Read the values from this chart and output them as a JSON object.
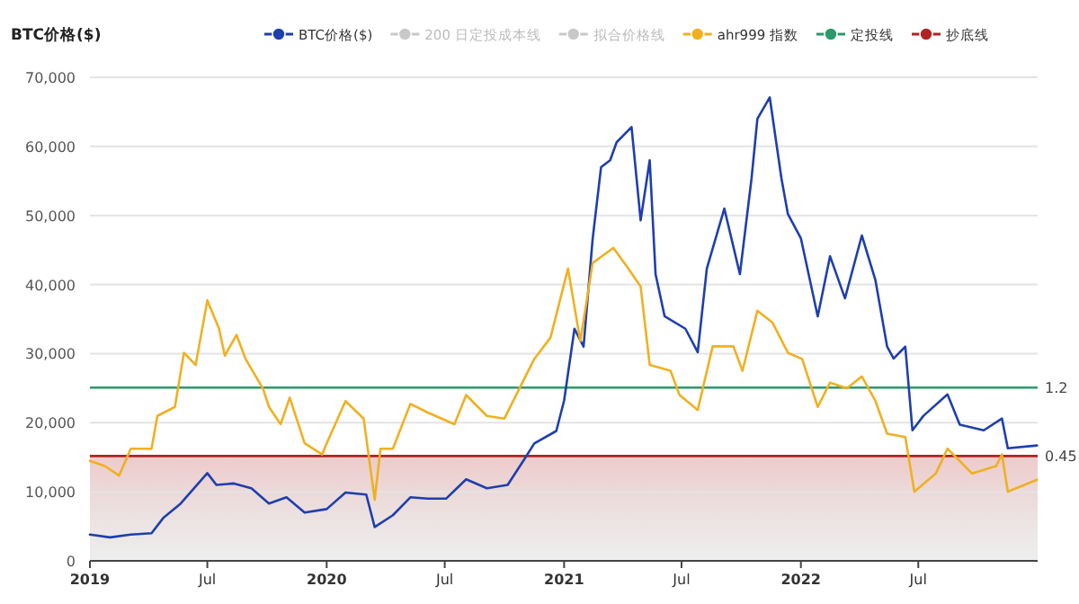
{
  "chart_data": {
    "type": "line",
    "ylabel": "BTC价格($)",
    "legend": "top",
    "grid": "y",
    "marker": "none",
    "xlim": [
      "2019-01-01",
      "2023-01-01"
    ],
    "xticks": [
      {
        "value": "2019-01-01",
        "label": "2019"
      },
      {
        "value": "2019-07-01",
        "label": "Jul"
      },
      {
        "value": "2020-01-01",
        "label": "2020"
      },
      {
        "value": "2020-07-01",
        "label": "Jul"
      },
      {
        "value": "2021-01-01",
        "label": "2021"
      },
      {
        "value": "2021-07-01",
        "label": "Jul"
      },
      {
        "value": "2022-01-01",
        "label": "2022"
      },
      {
        "value": "2022-07-01",
        "label": "Jul"
      }
    ],
    "ylim": [
      0,
      70000
    ],
    "yticks": [
      {
        "value": 0,
        "label": "0"
      },
      {
        "value": 10000,
        "label": "10,000"
      },
      {
        "value": 20000,
        "label": "20,000"
      },
      {
        "value": 30000,
        "label": "30,000"
      },
      {
        "value": 40000,
        "label": "40,000"
      },
      {
        "value": 50000,
        "label": "50,000"
      },
      {
        "value": 60000,
        "label": "60,000"
      },
      {
        "value": 70000,
        "label": "70,000"
      }
    ],
    "log": "y2",
    "y2lim": [
      0.1,
      103
    ],
    "y2ticks": [
      0.45,
      1.2
    ],
    "series": [
      {
        "name": "BTC价格($)",
        "color": "#1e3fae",
        "x": [
          "2019-01-01",
          "2019-02-01",
          "2019-03-05",
          "2019-04-06",
          "2019-04-24",
          "2019-05-21",
          "2019-07-01",
          "2019-07-15",
          "2019-08-11",
          "2019-09-07",
          "2019-10-04",
          "2019-10-31",
          "2019-11-28",
          "2020-01-01",
          "2020-01-30",
          "2020-03-02",
          "2020-03-15",
          "2020-04-12",
          "2020-05-09",
          "2020-06-05",
          "2020-07-03",
          "2020-08-03",
          "2020-09-04",
          "2020-10-06",
          "2020-11-02",
          "2020-11-16",
          "2020-12-20",
          "2021-01-01",
          "2021-01-17",
          "2021-01-31",
          "2021-02-14",
          "2021-02-27",
          "2021-03-13",
          "2021-03-23",
          "2021-04-15",
          "2021-04-29",
          "2021-05-13",
          "2021-05-22",
          "2021-06-05",
          "2021-07-07",
          "2021-07-26",
          "2021-08-09",
          "2021-09-05",
          "2021-09-29",
          "2021-10-17",
          "2021-10-26",
          "2021-11-14",
          "2021-12-02",
          "2021-12-12",
          "2022-01-01",
          "2022-01-27",
          "2022-02-15",
          "2022-03-10",
          "2022-04-05",
          "2022-04-26",
          "2022-05-14",
          "2022-05-24",
          "2022-06-11",
          "2022-06-22",
          "2022-07-09",
          "2022-08-15",
          "2022-09-03",
          "2022-10-10",
          "2022-11-07",
          "2022-11-16",
          "2022-12-31"
        ],
        "values": [
          3800,
          3400,
          3800,
          4000,
          6200,
          8300,
          12700,
          11000,
          11200,
          10500,
          8300,
          9200,
          7000,
          7500,
          9900,
          9600,
          4900,
          6600,
          9200,
          9000,
          9000,
          11800,
          10500,
          11000,
          14900,
          17000,
          18800,
          23200,
          33600,
          31000,
          46600,
          57000,
          58000,
          60600,
          62800,
          49300,
          58000,
          41500,
          35400,
          33600,
          30200,
          42300,
          51000,
          41500,
          55400,
          64000,
          67100,
          55400,
          50200,
          46700,
          35400,
          44100,
          38000,
          47100,
          40600,
          31000,
          29300,
          31000,
          18900,
          21000,
          24100,
          19700,
          18900,
          20600,
          16300,
          16700
        ]
      },
      {
        "name": "200 日定投成本线",
        "color": "#c8c8c8"
      },
      {
        "name": "拟合价格线",
        "color": "#c8c8c8"
      },
      {
        "name": "ahr999 指数",
        "color": "#f0b020",
        "axis": "y2",
        "x": [
          "2019-01-01",
          "2019-01-24",
          "2019-02-15",
          "2019-03-05",
          "2019-04-06",
          "2019-04-15",
          "2019-05-12",
          "2019-05-26",
          "2019-06-13",
          "2019-07-01",
          "2019-07-19",
          "2019-07-28",
          "2019-08-15",
          "2019-08-29",
          "2019-09-25",
          "2019-10-04",
          "2019-10-22",
          "2019-11-05",
          "2019-11-28",
          "2019-12-25",
          "2020-01-01",
          "2020-01-30",
          "2020-02-27",
          "2020-03-15",
          "2020-03-24",
          "2020-04-12",
          "2020-05-09",
          "2020-06-05",
          "2020-07-16",
          "2020-08-03",
          "2020-09-04",
          "2020-10-01",
          "2020-11-02",
          "2020-11-16",
          "2020-12-11",
          "2021-01-07",
          "2021-01-26",
          "2021-02-14",
          "2021-03-18",
          "2021-04-10",
          "2021-04-29",
          "2021-05-13",
          "2021-06-14",
          "2021-06-28",
          "2021-07-26",
          "2021-08-18",
          "2021-09-19",
          "2021-10-03",
          "2021-10-26",
          "2021-11-18",
          "2021-12-12",
          "2022-01-03",
          "2022-01-27",
          "2022-02-15",
          "2022-03-13",
          "2022-04-05",
          "2022-04-26",
          "2022-05-14",
          "2022-06-11",
          "2022-06-25",
          "2022-07-28",
          "2022-08-15",
          "2022-09-22",
          "2022-10-29",
          "2022-11-07",
          "2022-11-16",
          "2022-12-31"
        ],
        "values": [
          0.42,
          0.39,
          0.34,
          0.5,
          0.5,
          0.8,
          0.91,
          1.98,
          1.66,
          4.2,
          2.8,
          1.9,
          2.56,
          1.81,
          1.18,
          0.91,
          0.71,
          1.04,
          0.54,
          0.46,
          0.54,
          0.99,
          0.77,
          0.24,
          0.5,
          0.5,
          0.95,
          0.84,
          0.71,
          1.08,
          0.8,
          0.77,
          1.4,
          1.81,
          2.46,
          6.62,
          2.34,
          7.17,
          8.91,
          6.62,
          5.12,
          1.66,
          1.53,
          1.08,
          0.87,
          2.17,
          2.17,
          1.53,
          3.62,
          3.06,
          1.98,
          1.81,
          0.91,
          1.29,
          1.19,
          1.41,
          0.99,
          0.62,
          0.59,
          0.27,
          0.35,
          0.5,
          0.35,
          0.39,
          0.46,
          0.27,
          0.32
        ]
      }
    ],
    "ref_lines": [
      {
        "axis": "y2",
        "value": 1.2,
        "label": "定投线",
        "color": "#2a9a6a"
      },
      {
        "axis": "y2",
        "value": 0.45,
        "label": "抄底线",
        "color": "#b22222"
      }
    ],
    "bands": [
      {
        "axis": "y2",
        "from": 0.1,
        "to": 0.45,
        "color": "#d88a8a"
      }
    ]
  }
}
